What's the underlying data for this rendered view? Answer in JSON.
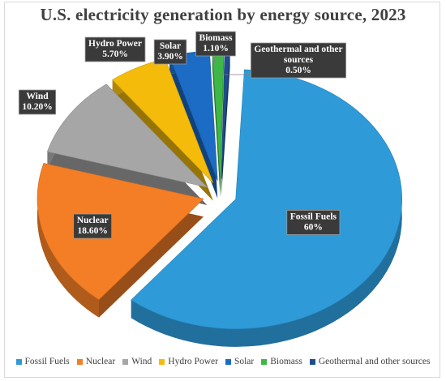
{
  "chart_data": {
    "type": "pie",
    "title": "U.S. electricity generation by energy source, 2023",
    "categories": [
      "Fossil Fuels",
      "Nuclear",
      "Wind",
      "Hydro Power",
      "Solar",
      "Biomass",
      "Geothermal and other sources"
    ],
    "values": [
      60,
      18.6,
      10.2,
      5.7,
      3.9,
      1.1,
      0.5
    ],
    "value_labels": [
      "60%",
      "18.60%",
      "10.20%",
      "5.70%",
      "3.90%",
      "1.10%",
      "0.50%"
    ],
    "colors": [
      "#2e9ad8",
      "#f37e26",
      "#a6a6a6",
      "#f4bb0a",
      "#1c6bc4",
      "#3db846",
      "#1f4e8c"
    ],
    "exploded": true,
    "style": "3d",
    "legend_position": "bottom"
  }
}
